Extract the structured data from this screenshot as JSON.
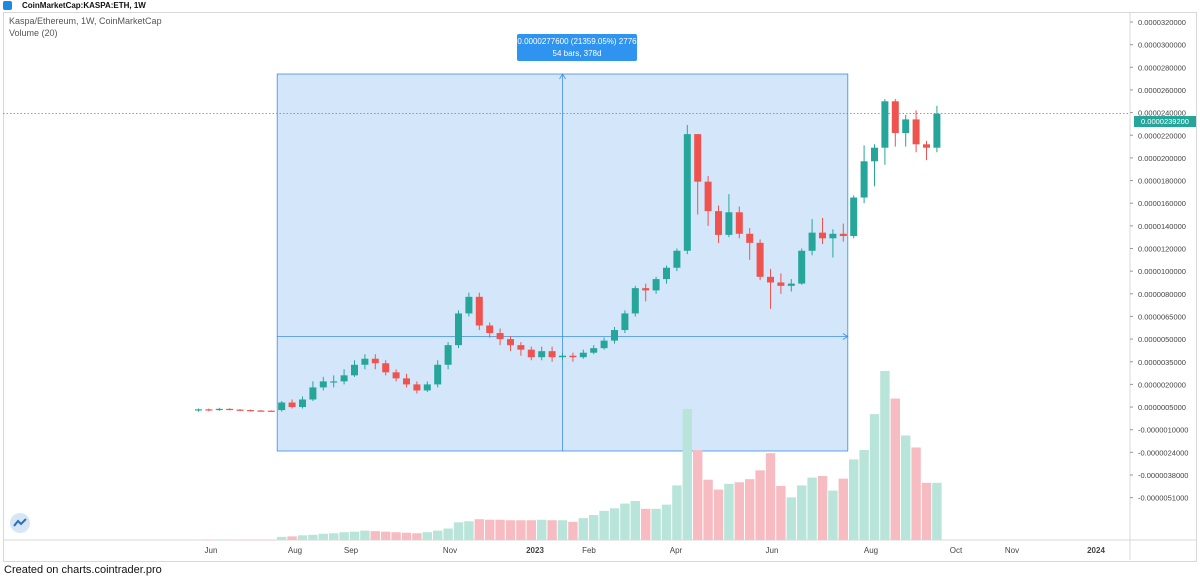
{
  "header": {
    "title": "CoinMarketCap:KASPA:ETH, 1W"
  },
  "legend": {
    "symbol_line": "Kaspa/Ethereum, 1W, CoinMarketCap",
    "volume_label": "Volume (20)"
  },
  "measure_tooltip": {
    "line1": "0.0000277600 (21359.05%) 2776",
    "line2": "54 bars, 378d"
  },
  "current_price_label": "0.0000239200",
  "footer": "Created on charts.cointrader.pro",
  "colors": {
    "up": "#26a69a",
    "down": "#ef5350",
    "up_volume": "#b9e4d9",
    "down_volume": "#f7bcc2",
    "measure_fill": "#cfe3f8",
    "measure_line": "#3d8ee8",
    "price_line": "#26a69a"
  },
  "chart_data": {
    "type": "candlestick",
    "title": "Kaspa/Ethereum, 1W, CoinMarketCap",
    "y_axis_ticks": [
      "0.0000320000",
      "0.0000300000",
      "0.0000280000",
      "0.0000260000",
      "0.0000240000",
      "0.0000220000",
      "0.0000200000",
      "0.0000180000",
      "0.0000160000",
      "0.0000140000",
      "0.0000120000",
      "0.0000100000",
      "0.0000080000",
      "0.0000065000",
      "0.0000050000",
      "0.0000035000",
      "0.0000020000",
      "0.0000005000",
      "-0.0000010000",
      "-0.0000024000",
      "-0.0000038000",
      "-0.0000051000"
    ],
    "x_axis_ticks": [
      "Jun",
      "Aug",
      "Sep",
      "Nov",
      "2023",
      "Feb",
      "Apr",
      "Jun",
      "Aug",
      "Oct",
      "Nov",
      "2024"
    ],
    "measure": {
      "change": "0.0000277600",
      "percent": "21359.05%",
      "ticks": 2776,
      "bars": 54,
      "days": "378d"
    },
    "current_price": "0.0000239200",
    "candles": [
      [
        3.2e-07,
        3.5e-07,
        2e-07,
        4e-07
      ],
      [
        3.5e-07,
        3e-07,
        2.2e-07,
        4e-07
      ],
      [
        3e-07,
        3.8e-07,
        2.5e-07,
        4.5e-07
      ],
      [
        3.8e-07,
        3.3e-07,
        2.8e-07,
        4.2e-07
      ],
      [
        3.3e-07,
        3e-07,
        2.5e-07,
        3.6e-07
      ],
      [
        3e-07,
        2.7e-07,
        2.2e-07,
        3.3e-07
      ],
      [
        2.7e-07,
        2.6e-07,
        2e-07,
        3e-07
      ],
      [
        2.6e-07,
        2.5e-07,
        2e-07,
        2.8e-07
      ],
      [
        3e-07,
        8e-07,
        2e-07,
        9e-07
      ],
      [
        8e-07,
        5e-07,
        4e-07,
        1e-06
      ],
      [
        5e-07,
        1e-06,
        4e-07,
        1.2e-06
      ],
      [
        1e-06,
        1.8e-06,
        9e-07,
        2.2e-06
      ],
      [
        1.8e-06,
        2.2e-06,
        1.6e-06,
        2.5e-06
      ],
      [
        2.2e-06,
        2.2e-06,
        1.8e-06,
        2.6e-06
      ],
      [
        2.2e-06,
        2.6e-06,
        2e-06,
        3e-06
      ],
      [
        2.6e-06,
        3.3e-06,
        2.5e-06,
        3.6e-06
      ],
      [
        3.3e-06,
        3.7e-06,
        3e-06,
        4e-06
      ],
      [
        3.7e-06,
        3.4e-06,
        3e-06,
        4e-06
      ],
      [
        3.4e-06,
        2.8e-06,
        2.6e-06,
        3.6e-06
      ],
      [
        2.8e-06,
        2.4e-06,
        2.2e-06,
        3e-06
      ],
      [
        2.4e-06,
        2e-06,
        1.8e-06,
        2.7e-06
      ],
      [
        2e-06,
        1.6e-06,
        1.4e-06,
        2.2e-06
      ],
      [
        1.6e-06,
        2e-06,
        1.5e-06,
        2.2e-06
      ],
      [
        2e-06,
        3.3e-06,
        1.8e-06,
        3.6e-06
      ],
      [
        3.3e-06,
        4.6e-06,
        3e-06,
        4.8e-06
      ],
      [
        4.6e-06,
        6.7e-06,
        4.4e-06,
        6.9e-06
      ],
      [
        6.7e-06,
        7.8e-06,
        6.5e-06,
        8.1e-06
      ],
      [
        7.8e-06,
        5.9e-06,
        5.6e-06,
        8.1e-06
      ],
      [
        5.9e-06,
        5.4e-06,
        5.1e-06,
        6.1e-06
      ],
      [
        5.4e-06,
        5e-06,
        4.6e-06,
        5.7e-06
      ],
      [
        5e-06,
        4.6e-06,
        4.2e-06,
        5.2e-06
      ],
      [
        4.6e-06,
        4.3e-06,
        3.9e-06,
        4.8e-06
      ],
      [
        4.3e-06,
        3.8e-06,
        3.6e-06,
        4.5e-06
      ],
      [
        3.8e-06,
        4.2e-06,
        3.6e-06,
        4.5e-06
      ],
      [
        4.2e-06,
        3.8e-06,
        3.5e-06,
        4.5e-06
      ],
      [
        3.8e-06,
        3.9e-06,
        3.6e-06,
        4.1e-06
      ],
      [
        3.9e-06,
        3.8e-06,
        3.5e-06,
        4.1e-06
      ],
      [
        3.8e-06,
        4.1e-06,
        3.7e-06,
        4.3e-06
      ],
      [
        4.1e-06,
        4.4e-06,
        4e-06,
        4.6e-06
      ],
      [
        4.4e-06,
        4.9e-06,
        4.3e-06,
        5.1e-06
      ],
      [
        4.9e-06,
        5.6e-06,
        4.7e-06,
        5.8e-06
      ],
      [
        5.6e-06,
        6.7e-06,
        5.4e-06,
        6.9e-06
      ],
      [
        6.7e-06,
        8.5e-06,
        6.5e-06,
        8.7e-06
      ],
      [
        8.5e-06,
        8.3e-06,
        7.5e-06,
        8.9e-06
      ],
      [
        8.3e-06,
        9.3e-06,
        8e-06,
        9.5e-06
      ],
      [
        9.3e-06,
        1.03e-05,
        8.9e-06,
        1.05e-05
      ],
      [
        1.03e-05,
        1.18e-05,
        1e-05,
        1.2e-05
      ],
      [
        1.18e-05,
        2.21e-05,
        1.15e-05,
        2.29e-05
      ],
      [
        2.21e-05,
        1.79e-05,
        1.5e-05,
        2.21e-05
      ],
      [
        1.79e-05,
        1.53e-05,
        1.4e-05,
        1.84e-05
      ],
      [
        1.53e-05,
        1.32e-05,
        1.25e-05,
        1.58e-05
      ],
      [
        1.32e-05,
        1.52e-05,
        1.3e-05,
        1.68e-05
      ],
      [
        1.52e-05,
        1.33e-05,
        1.29e-05,
        1.57e-05
      ],
      [
        1.33e-05,
        1.25e-05,
        1.1e-05,
        1.38e-05
      ],
      [
        1.25e-05,
        9.5e-06,
        9.2e-06,
        1.28e-05
      ],
      [
        9.5e-06,
        9e-06,
        7e-06,
        1.02e-05
      ],
      [
        9e-06,
        8.7e-06,
        8e-06,
        9.8e-06
      ],
      [
        8.7e-06,
        8.9e-06,
        8.2e-06,
        9.3e-06
      ],
      [
        8.9e-06,
        1.18e-05,
        8.8e-06,
        1.2e-05
      ],
      [
        1.18e-05,
        1.34e-05,
        1.14e-05,
        1.46e-05
      ],
      [
        1.34e-05,
        1.29e-05,
        1.24e-05,
        1.47e-05
      ],
      [
        1.29e-05,
        1.33e-05,
        1.12e-05,
        1.37e-05
      ],
      [
        1.33e-05,
        1.31e-05,
        1.26e-05,
        1.42e-05
      ],
      [
        1.31e-05,
        1.65e-05,
        1.29e-05,
        1.67e-05
      ],
      [
        1.65e-05,
        1.97e-05,
        1.6e-05,
        2.11e-05
      ],
      [
        1.97e-05,
        2.09e-05,
        1.75e-05,
        2.12e-05
      ],
      [
        2.09e-05,
        2.5e-05,
        1.94e-05,
        2.52e-05
      ],
      [
        2.5e-05,
        2.22e-05,
        2.1e-05,
        2.52e-05
      ],
      [
        2.22e-05,
        2.34e-05,
        2.1e-05,
        2.38e-05
      ],
      [
        2.34e-05,
        2.12e-05,
        2.05e-05,
        2.42e-05
      ],
      [
        2.12e-05,
        2.09e-05,
        1.98e-05,
        2.15e-05
      ],
      [
        2.09e-05,
        2.39e-05,
        2.05e-05,
        2.46e-05
      ]
    ],
    "volume": [
      0.06,
      0.05,
      0.05,
      0.06,
      0.05,
      0.05,
      0.05,
      0.05,
      0.6,
      0.7,
      0.9,
      1.0,
      1.2,
      1.3,
      1.5,
      1.6,
      1.8,
      1.7,
      1.6,
      1.5,
      1.4,
      1.3,
      1.5,
      1.8,
      2.2,
      3.4,
      3.6,
      4.0,
      3.9,
      3.9,
      3.8,
      3.8,
      3.8,
      3.9,
      3.8,
      3.8,
      3.5,
      4.2,
      4.8,
      5.6,
      6.1,
      7.0,
      7.5,
      6.0,
      6.0,
      6.8,
      10.5,
      25.2,
      17.3,
      11.6,
      9.7,
      10.8,
      11.1,
      11.7,
      13.4,
      16.7,
      10.4,
      8.2,
      10.5,
      12.0,
      12.3,
      9.5,
      11.8,
      15.5,
      17.3,
      24.2,
      32.5,
      27.2,
      20.1,
      17.8,
      11.0,
      11.0
    ]
  }
}
